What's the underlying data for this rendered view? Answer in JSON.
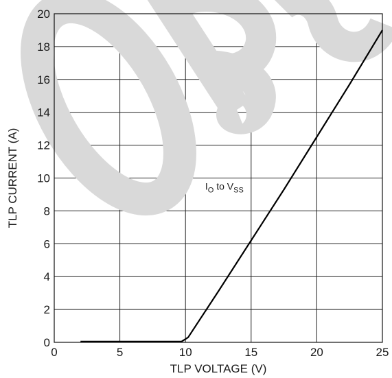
{
  "chart_data": {
    "type": "line",
    "xlabel": "TLP VOLTAGE (V)",
    "ylabel": "TLP CURRENT (A)",
    "xlim": [
      0,
      25
    ],
    "ylim": [
      0,
      20
    ],
    "xticks": [
      0,
      5,
      10,
      15,
      20,
      25
    ],
    "yticks": [
      0,
      2,
      4,
      6,
      8,
      10,
      12,
      14,
      16,
      18,
      20
    ],
    "xtick_labels": [
      "0",
      "5",
      "10",
      "15",
      "20",
      "25"
    ],
    "ytick_labels": [
      "0",
      "2",
      "4",
      "6",
      "8",
      "10",
      "12",
      "14",
      "16",
      "18",
      "20"
    ],
    "grid": true,
    "series": [
      {
        "x": [
          2,
          9.7,
          10.2,
          12.5,
          15,
          17.5,
          20,
          22.5,
          25
        ],
        "y": [
          0.05,
          0.05,
          0.3,
          3.1,
          6.2,
          9.3,
          12.5,
          15.7,
          19.0
        ],
        "color": "#000000"
      }
    ],
    "annotation": {
      "main1": "I",
      "sub1": "O",
      "main2": " to V",
      "sub2": "SS",
      "x": 11.5,
      "y": 9.3
    },
    "watermark": {
      "text": "OBS",
      "color": "#d9d9d9"
    }
  }
}
